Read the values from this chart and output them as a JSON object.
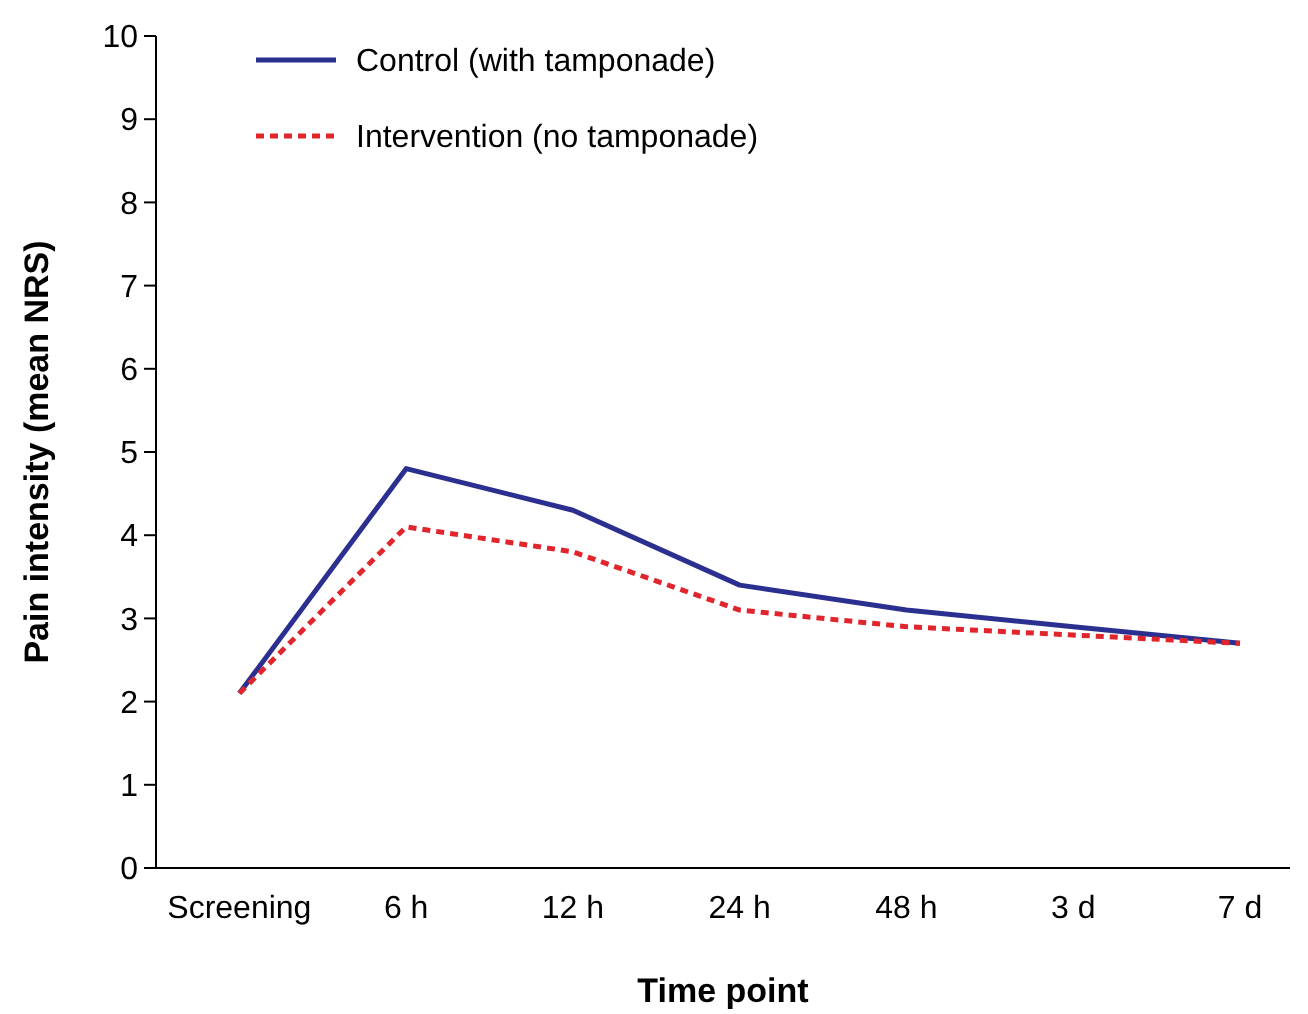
{
  "chart_data": {
    "type": "line",
    "xlabel": "Time point",
    "ylabel": "Pain intensity (mean NRS)",
    "categories": [
      "Screening",
      "6 h",
      "12 h",
      "24 h",
      "48 h",
      "3 d",
      "7 d"
    ],
    "series": [
      {
        "name": "Control (with tamponade)",
        "color": "#2b2f8f",
        "line_style": "solid",
        "values": [
          2.1,
          4.8,
          4.3,
          3.4,
          3.1,
          2.9,
          2.7
        ]
      },
      {
        "name": "Intervention (no tamponade)",
        "color": "#e0262c",
        "line_style": "dotted",
        "values": [
          2.1,
          4.1,
          3.8,
          3.1,
          2.9,
          2.8,
          2.7
        ]
      }
    ],
    "ylim": [
      0,
      10
    ],
    "yticks": [
      0,
      1,
      2,
      3,
      4,
      5,
      6,
      7,
      8,
      9,
      10
    ],
    "legend": "top left",
    "marker": "none",
    "grid": false
  }
}
